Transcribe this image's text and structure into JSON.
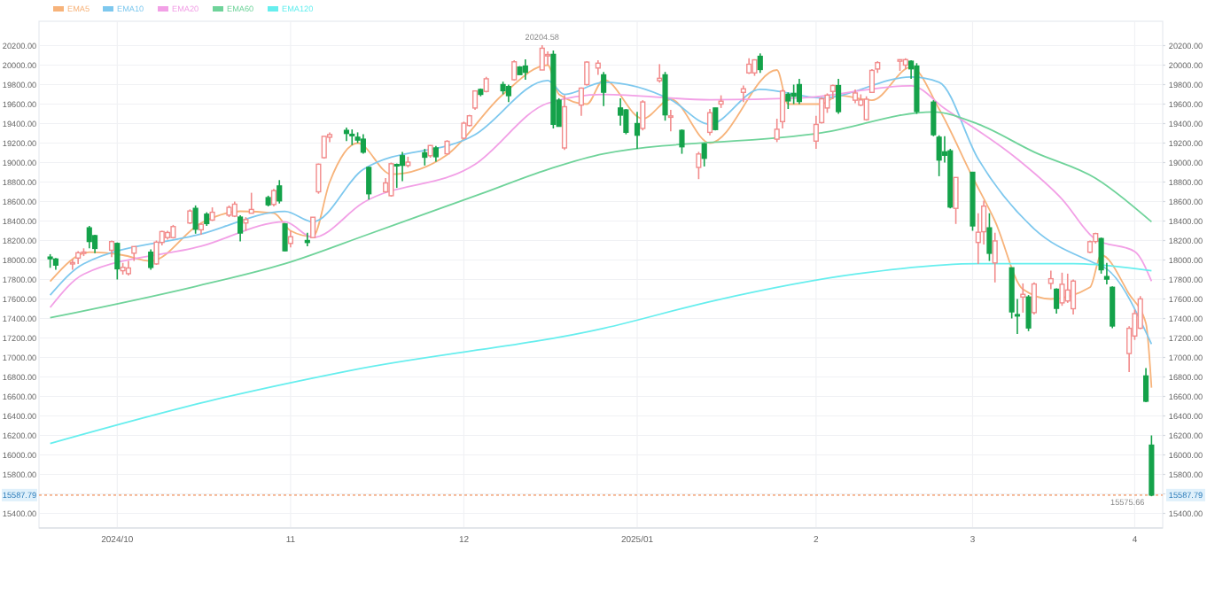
{
  "chart_data": {
    "type": "candlestick",
    "legend": "top left",
    "grid": true,
    "x": [
      "2024-09-19",
      "2024-09-20",
      "2024-09-23",
      "2024-09-24",
      "2024-09-25",
      "2024-09-26",
      "2024-09-27",
      "2024-09-30",
      "2024-10-01",
      "2024-10-02",
      "2024-10-03",
      "2024-10-04",
      "2024-10-07",
      "2024-10-08",
      "2024-10-09",
      "2024-10-10",
      "2024-10-11",
      "2024-10-14",
      "2024-10-15",
      "2024-10-16",
      "2024-10-17",
      "2024-10-18",
      "2024-10-21",
      "2024-10-22",
      "2024-10-23",
      "2024-10-24",
      "2024-10-25",
      "2024-10-28",
      "2024-10-29",
      "2024-10-30",
      "2024-10-31",
      "2024-11-01",
      "2024-11-04",
      "2024-11-05",
      "2024-11-06",
      "2024-11-07",
      "2024-11-08",
      "2024-11-11",
      "2024-11-12",
      "2024-11-13",
      "2024-11-14",
      "2024-11-15",
      "2024-11-18",
      "2024-11-19",
      "2024-11-20",
      "2024-11-21",
      "2024-11-22",
      "2024-11-25",
      "2024-11-26",
      "2024-11-27",
      "2024-11-29",
      "2024-12-02",
      "2024-12-03",
      "2024-12-04",
      "2024-12-05",
      "2024-12-06",
      "2024-12-09",
      "2024-12-10",
      "2024-12-11",
      "2024-12-12",
      "2024-12-13",
      "2024-12-16",
      "2024-12-17",
      "2024-12-18",
      "2024-12-19",
      "2024-12-20",
      "2024-12-23",
      "2024-12-24",
      "2024-12-26",
      "2024-12-27",
      "2024-12-30",
      "2024-12-31",
      "2025-01-02",
      "2025-01-03",
      "2025-01-06",
      "2025-01-07",
      "2025-01-08",
      "2025-01-10",
      "2025-01-13",
      "2025-01-14",
      "2025-01-15",
      "2025-01-16",
      "2025-01-17",
      "2025-01-21",
      "2025-01-22",
      "2025-01-23",
      "2025-01-24",
      "2025-01-27",
      "2025-01-28",
      "2025-01-29",
      "2025-01-30",
      "2025-01-31",
      "2025-02-03",
      "2025-02-04",
      "2025-02-05",
      "2025-02-06",
      "2025-02-07",
      "2025-02-10",
      "2025-02-11",
      "2025-02-12",
      "2025-02-13",
      "2025-02-14",
      "2025-02-18",
      "2025-02-19",
      "2025-02-20",
      "2025-02-21",
      "2025-02-24",
      "2025-02-25",
      "2025-02-26",
      "2025-02-27",
      "2025-02-28",
      "2025-03-03",
      "2025-03-04",
      "2025-03-05",
      "2025-03-06",
      "2025-03-07",
      "2025-03-10",
      "2025-03-11",
      "2025-03-12",
      "2025-03-13",
      "2025-03-14",
      "2025-03-17",
      "2025-03-18",
      "2025-03-19",
      "2025-03-20",
      "2025-03-21",
      "2025-03-24",
      "2025-03-25",
      "2025-03-26",
      "2025-03-27",
      "2025-03-28",
      "2025-03-31",
      "2025-04-01",
      "2025-04-02",
      "2025-04-03",
      "2025-04-04"
    ],
    "ohlc": [
      [
        18030,
        18060,
        17920,
        18013
      ],
      [
        18010,
        18020,
        17900,
        17948
      ],
      [
        17960,
        18010,
        17900,
        17974
      ],
      [
        18020,
        18090,
        17960,
        18074
      ],
      [
        18080,
        18120,
        18040,
        18082
      ],
      [
        18330,
        18350,
        18120,
        18190
      ],
      [
        18250,
        18260,
        18070,
        18119
      ],
      [
        18100,
        18200,
        18030,
        18189
      ],
      [
        18170,
        18180,
        17800,
        17910
      ],
      [
        17890,
        17970,
        17850,
        17925
      ],
      [
        17860,
        17990,
        17840,
        17918
      ],
      [
        18070,
        18140,
        17990,
        18138
      ],
      [
        18080,
        18110,
        17900,
        17924
      ],
      [
        17960,
        18200,
        17950,
        18183
      ],
      [
        18180,
        18300,
        18150,
        18292
      ],
      [
        18230,
        18300,
        18210,
        18282
      ],
      [
        18230,
        18360,
        18220,
        18343
      ],
      [
        18380,
        18520,
        18370,
        18503
      ],
      [
        18530,
        18560,
        18270,
        18316
      ],
      [
        18310,
        18380,
        18260,
        18367
      ],
      [
        18470,
        18490,
        18350,
        18374
      ],
      [
        18410,
        18540,
        18400,
        18490
      ],
      [
        18460,
        18560,
        18440,
        18540
      ],
      [
        18450,
        18600,
        18440,
        18573
      ],
      [
        18440,
        18460,
        18190,
        18277
      ],
      [
        18380,
        18440,
        18300,
        18415
      ],
      [
        18480,
        18690,
        18480,
        18519
      ],
      [
        18640,
        18660,
        18550,
        18567
      ],
      [
        18570,
        18730,
        18550,
        18712
      ],
      [
        18760,
        18820,
        18580,
        18607
      ],
      [
        18370,
        18380,
        18090,
        18095
      ],
      [
        18170,
        18300,
        18130,
        18239
      ],
      [
        18200,
        18280,
        18140,
        18180
      ],
      [
        18230,
        18440,
        18230,
        18439
      ],
      [
        18700,
        18990,
        18680,
        18983
      ],
      [
        19050,
        19270,
        19040,
        19269
      ],
      [
        19260,
        19310,
        19210,
        19287
      ],
      [
        19330,
        19360,
        19220,
        19299
      ],
      [
        19290,
        19340,
        19180,
        19281
      ],
      [
        19260,
        19310,
        19200,
        19231
      ],
      [
        19240,
        19290,
        19090,
        19107
      ],
      [
        18950,
        18960,
        18620,
        18680
      ],
      [
        18700,
        18840,
        18690,
        18791
      ],
      [
        18660,
        19000,
        18650,
        18988
      ],
      [
        18980,
        18990,
        18740,
        18967
      ],
      [
        19070,
        19110,
        18810,
        18972
      ],
      [
        18970,
        19060,
        18950,
        19004
      ],
      [
        19100,
        19140,
        18970,
        19055
      ],
      [
        19070,
        19180,
        19050,
        19175
      ],
      [
        19150,
        19170,
        19010,
        19060
      ],
      [
        19090,
        19230,
        19090,
        19218
      ],
      [
        19250,
        19420,
        19240,
        19404
      ],
      [
        19380,
        19490,
        19370,
        19480
      ],
      [
        19560,
        19740,
        19540,
        19735
      ],
      [
        19750,
        19760,
        19680,
        19700
      ],
      [
        19730,
        19880,
        19720,
        19860
      ],
      [
        19800,
        19830,
        19700,
        19737
      ],
      [
        19780,
        19800,
        19620,
        19687
      ],
      [
        19850,
        20050,
        19840,
        20034
      ],
      [
        19980,
        19990,
        19900,
        19903
      ],
      [
        19990,
        20060,
        19850,
        19926
      ],
      [
        19950,
        20204.58,
        19950,
        20173
      ],
      [
        20100,
        20140,
        20000,
        20109
      ],
      [
        20110,
        20150,
        19350,
        19393
      ],
      [
        19640,
        19660,
        19370,
        19372
      ],
      [
        19150,
        19690,
        19130,
        19573
      ],
      [
        19590,
        19770,
        19480,
        19764
      ],
      [
        19800,
        20040,
        19790,
        20031
      ],
      [
        19970,
        20050,
        19900,
        20020
      ],
      [
        19900,
        19930,
        19580,
        19722
      ],
      [
        19560,
        19660,
        19380,
        19487
      ],
      [
        19540,
        19550,
        19290,
        19311
      ],
      [
        19400,
        19520,
        19140,
        19281
      ],
      [
        19350,
        19640,
        19330,
        19622
      ],
      [
        19840,
        20010,
        19820,
        19865
      ],
      [
        19900,
        19930,
        19430,
        19490
      ],
      [
        19470,
        19540,
        19320,
        19479
      ],
      [
        19330,
        19340,
        19090,
        19162
      ],
      [
        18950,
        19110,
        18830,
        19088
      ],
      [
        19190,
        19200,
        18960,
        19044
      ],
      [
        19310,
        19550,
        19280,
        19511
      ],
      [
        19560,
        19560,
        19330,
        19339
      ],
      [
        19600,
        19690,
        19560,
        19630
      ],
      [
        19720,
        19790,
        19620,
        19757
      ],
      [
        19920,
        20070,
        19910,
        20009
      ],
      [
        19920,
        20060,
        19890,
        20054
      ],
      [
        20090,
        20120,
        19920,
        19955
      ],
      [
        19240,
        19450,
        19210,
        19342
      ],
      [
        19420,
        19750,
        19350,
        19734
      ],
      [
        19700,
        19720,
        19550,
        19633
      ],
      [
        19710,
        19800,
        19600,
        19681
      ],
      [
        19800,
        19860,
        19600,
        19627
      ],
      [
        19220,
        19480,
        19140,
        19391
      ],
      [
        19410,
        19670,
        19400,
        19654
      ],
      [
        19560,
        19710,
        19510,
        19692
      ],
      [
        19730,
        19800,
        19650,
        19791
      ],
      [
        19790,
        19860,
        19500,
        19523
      ],
      [
        19640,
        19750,
        19610,
        19714
      ],
      [
        19590,
        19700,
        19580,
        19643
      ],
      [
        19440,
        19680,
        19430,
        19650
      ],
      [
        19720,
        19960,
        19720,
        19946
      ],
      [
        19960,
        20040,
        19920,
        20026
      ],
      [
        20040,
        20060,
        19940,
        20056
      ],
      [
        20000,
        20070,
        19960,
        20056
      ],
      [
        20040,
        20050,
        19860,
        19962
      ],
      [
        19990,
        20020,
        19500,
        19524
      ],
      [
        19620,
        19640,
        19270,
        19286
      ],
      [
        19260,
        19280,
        18860,
        19026
      ],
      [
        19110,
        19270,
        19000,
        19075
      ],
      [
        19120,
        19140,
        18530,
        18544
      ],
      [
        18530,
        18850,
        18370,
        18847
      ],
      [
        18900,
        18900,
        18300,
        18350
      ],
      [
        18180,
        18480,
        17960,
        18285
      ],
      [
        18290,
        18610,
        18160,
        18553
      ],
      [
        18330,
        18480,
        17990,
        18069
      ],
      [
        17970,
        18280,
        17770,
        18196
      ],
      [
        17920,
        17920,
        17400,
        17468
      ],
      [
        17440,
        17600,
        17240,
        17436
      ],
      [
        17620,
        17760,
        17460,
        17648
      ],
      [
        17620,
        17640,
        17270,
        17303
      ],
      [
        17460,
        17770,
        17440,
        17754
      ],
      [
        17760,
        17890,
        17700,
        17808
      ],
      [
        17700,
        17710,
        17450,
        17504
      ],
      [
        17560,
        17870,
        17530,
        17751
      ],
      [
        17580,
        17860,
        17560,
        17692
      ],
      [
        17500,
        17800,
        17440,
        17784
      ],
      [
        18080,
        18200,
        18070,
        18188
      ],
      [
        18190,
        18280,
        18170,
        18271
      ],
      [
        18220,
        18230,
        17860,
        17900
      ],
      [
        17830,
        17970,
        17750,
        17804
      ],
      [
        17720,
        17730,
        17300,
        17323
      ],
      [
        17040,
        17320,
        16850,
        17299
      ],
      [
        17220,
        17490,
        17180,
        17450
      ],
      [
        17300,
        17630,
        17290,
        17601
      ],
      [
        16810,
        16890,
        16540,
        16551
      ],
      [
        16100,
        16200,
        15575.66,
        15587.79
      ]
    ],
    "series": [
      {
        "name": "EMA5",
        "type": "line",
        "color": "#f7b37a",
        "x": [
          "2024-09-19",
          "2024-09-26",
          "2024-10-02",
          "2024-10-07",
          "2024-10-16",
          "2024-10-23",
          "2024-10-29",
          "2024-11-01",
          "2024-11-05",
          "2024-11-08",
          "2024-11-13",
          "2024-11-19",
          "2024-11-29",
          "2024-12-09",
          "2024-12-17",
          "2024-12-19",
          "2024-12-24",
          "2024-12-27",
          "2025-01-03",
          "2025-01-08",
          "2025-01-15",
          "2025-01-27",
          "2025-01-29",
          "2025-02-04",
          "2025-02-07",
          "2025-02-13",
          "2025-02-20",
          "2025-02-25",
          "2025-03-03",
          "2025-03-07",
          "2025-03-12",
          "2025-03-17",
          "2025-03-24",
          "2025-03-26",
          "2025-03-31",
          "2025-04-03",
          "2025-04-04"
        ],
        "values": [
          17780,
          18080,
          18050,
          17990,
          18380,
          18500,
          18480,
          18300,
          18240,
          18800,
          19200,
          18880,
          19080,
          19700,
          20000,
          19700,
          19600,
          19850,
          19450,
          19650,
          19200,
          19950,
          19600,
          19600,
          19690,
          19640,
          19980,
          19550,
          18850,
          18400,
          17700,
          17600,
          17720,
          18050,
          17650,
          17350,
          16690
        ]
      },
      {
        "name": "EMA10",
        "type": "line",
        "color": "#7ec8ee",
        "x": [
          "2024-09-19",
          "2024-09-25",
          "2024-10-16",
          "2024-10-31",
          "2024-11-05",
          "2024-11-14",
          "2024-12-04",
          "2024-12-17",
          "2024-12-20",
          "2024-12-27",
          "2025-01-08",
          "2025-01-15",
          "2025-01-24",
          "2025-02-04",
          "2025-02-20",
          "2025-02-25",
          "2025-03-04",
          "2025-03-14",
          "2025-03-25",
          "2025-03-27",
          "2025-04-04"
        ],
        "values": [
          17640,
          17962,
          18266,
          18499,
          18392,
          18929,
          19287,
          19842,
          19699,
          19824,
          19645,
          19394,
          19752,
          19663,
          19878,
          19824,
          19036,
          18320,
          17962,
          17908,
          17138
        ]
      },
      {
        "name": "EMA20",
        "type": "line",
        "color": "#f2a0e6",
        "x": [
          "2024-09-19",
          "2024-09-25",
          "2024-10-16",
          "2024-10-31",
          "2024-11-05",
          "2024-11-14",
          "2024-12-04",
          "2024-12-17",
          "2024-12-27",
          "2025-01-15",
          "2025-01-31",
          "2025-02-20",
          "2025-02-26",
          "2025-03-11",
          "2025-03-19",
          "2025-03-25",
          "2025-04-01",
          "2025-04-04"
        ],
        "values": [
          17514,
          17855,
          18141,
          18392,
          18231,
          18589,
          18982,
          19609,
          19699,
          19645,
          19663,
          19788,
          19555,
          19036,
          18624,
          18212,
          18087,
          17783
        ]
      },
      {
        "name": "EMA60",
        "type": "line",
        "color": "#6fd39a",
        "x": [
          "2024-09-19",
          "2024-10-15",
          "2024-10-31",
          "2024-11-15",
          "2024-12-05",
          "2024-12-17",
          "2024-12-27",
          "2025-02-04",
          "2025-02-24",
          "2025-03-04",
          "2025-03-14",
          "2025-03-25",
          "2025-04-04"
        ],
        "values": [
          17407,
          17729,
          17962,
          18266,
          18678,
          18929,
          19090,
          19305,
          19520,
          19394,
          19108,
          18839,
          18392
        ]
      },
      {
        "name": "EMA120",
        "type": "line",
        "color": "#66eeee",
        "x": [
          "2024-09-19",
          "2024-10-17",
          "2024-11-12",
          "2024-12-27",
          "2025-01-16",
          "2025-02-10",
          "2025-03-04",
          "2025-03-21",
          "2025-04-04"
        ],
        "values": [
          16118,
          16547,
          16870,
          17299,
          17586,
          17855,
          17962,
          17962,
          17890
        ]
      }
    ],
    "ylim": [
      15250,
      20450
    ],
    "yticks": [
      {
        "value": 15400,
        "label": "15400.00"
      },
      {
        "value": 15600,
        "label": null
      },
      {
        "value": 15800,
        "label": "15800.00"
      },
      {
        "value": 16000,
        "label": "16000.00"
      },
      {
        "value": 16200,
        "label": "16200.00"
      },
      {
        "value": 16400,
        "label": "16400.00"
      },
      {
        "value": 16600,
        "label": "16600.00"
      },
      {
        "value": 16800,
        "label": "16800.00"
      },
      {
        "value": 17000,
        "label": "17000.00"
      },
      {
        "value": 17200,
        "label": "17200.00"
      },
      {
        "value": 17400,
        "label": "17400.00"
      },
      {
        "value": 17600,
        "label": "17600.00"
      },
      {
        "value": 17800,
        "label": "17800.00"
      },
      {
        "value": 18000,
        "label": "18000.00"
      },
      {
        "value": 18200,
        "label": "18200.00"
      },
      {
        "value": 18400,
        "label": "18400.00"
      },
      {
        "value": 18600,
        "label": "18600.00"
      },
      {
        "value": 18800,
        "label": "18800.00"
      },
      {
        "value": 19000,
        "label": "19000.00"
      },
      {
        "value": 19200,
        "label": "19200.00"
      },
      {
        "value": 19400,
        "label": "19400.00"
      },
      {
        "value": 19600,
        "label": "19600.00"
      },
      {
        "value": 19800,
        "label": "19800.00"
      },
      {
        "value": 20000,
        "label": "20000.00"
      },
      {
        "value": 20200,
        "label": "20200.00"
      }
    ],
    "y2lim": [
      15250,
      20450
    ],
    "y2ticks": [
      {
        "value": 15400,
        "label": "15400.00"
      },
      {
        "value": 15600,
        "label": null
      },
      {
        "value": 15800,
        "label": "15800.00"
      },
      {
        "value": 16000,
        "label": "16000.00"
      },
      {
        "value": 16200,
        "label": "16200.00"
      },
      {
        "value": 16400,
        "label": "16400.00"
      },
      {
        "value": 16600,
        "label": "16600.00"
      },
      {
        "value": 16800,
        "label": "16800.00"
      },
      {
        "value": 17000,
        "label": "17000.00"
      },
      {
        "value": 17200,
        "label": "17200.00"
      },
      {
        "value": 17400,
        "label": "17400.00"
      },
      {
        "value": 17600,
        "label": "17600.00"
      },
      {
        "value": 17800,
        "label": "17800.00"
      },
      {
        "value": 18000,
        "label": "18000.00"
      },
      {
        "value": 18200,
        "label": "18200.00"
      },
      {
        "value": 18400,
        "label": "18400.00"
      },
      {
        "value": 18600,
        "label": "18600.00"
      },
      {
        "value": 18800,
        "label": "18800.00"
      },
      {
        "value": 19000,
        "label": "19000.00"
      },
      {
        "value": 19200,
        "label": "19200.00"
      },
      {
        "value": 19400,
        "label": "19400.00"
      },
      {
        "value": 19600,
        "label": "19600.00"
      },
      {
        "value": 19800,
        "label": "19800.00"
      },
      {
        "value": 20000,
        "label": "20000.00"
      },
      {
        "value": 20200,
        "label": "20200.00"
      }
    ],
    "xlim": [
      "2024-09-17",
      "2025-04-06"
    ],
    "xticks": [
      {
        "value": "2024-10-01",
        "label": "2024/10"
      },
      {
        "value": "2024-11-01",
        "label": "11"
      },
      {
        "value": "2024-12-02",
        "label": "12"
      },
      {
        "value": "2025-01-02",
        "label": "2025/01"
      },
      {
        "value": "2025-02-03",
        "label": "2"
      },
      {
        "value": "2025-03-03",
        "label": "3"
      },
      {
        "value": "2025-04-01",
        "label": "4"
      }
    ],
    "ref_lines": [
      {
        "axis": "y",
        "value": 15587.79,
        "label": "15587.79",
        "color": "#f5b08a",
        "line_style": "dotted"
      }
    ],
    "annotations": [
      {
        "text": "20204.58",
        "x": "2024-12-16",
        "y": 20204.58
      },
      {
        "text": "15575.66",
        "x": "2025-04-04",
        "y": 15575.66
      }
    ]
  }
}
